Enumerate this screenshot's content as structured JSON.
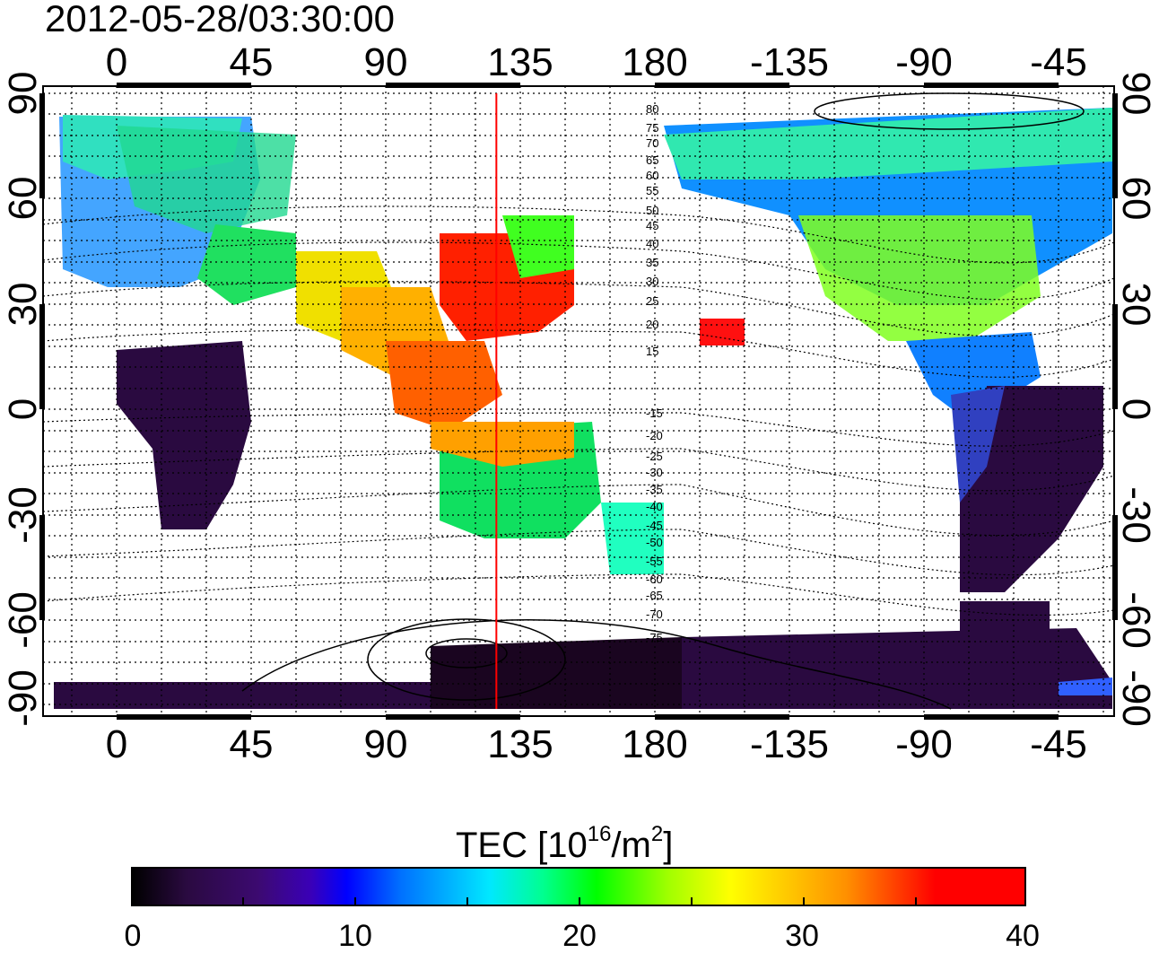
{
  "timestamp": "2012-05-28/03:30:00",
  "map": {
    "lon_ticks": [
      "0",
      "45",
      "90",
      "135",
      "180",
      "-135",
      "-90",
      "-45"
    ],
    "lat_ticks": [
      "90",
      "60",
      "30",
      "0",
      "-30",
      "-60",
      "-90"
    ],
    "meridian_marker_lon": 127,
    "contour_labels_north": [
      "80",
      "75",
      "70",
      "65",
      "60",
      "55",
      "50",
      "45",
      "40",
      "35",
      "30",
      "25",
      "20",
      "15"
    ],
    "contour_labels_south": [
      "-15",
      "-20",
      "-25",
      "-30",
      "-35",
      "-40",
      "-45",
      "-50",
      "-55",
      "-60",
      "-65",
      "-70",
      "-75"
    ],
    "colors": {
      "marker_line": "#ff0000",
      "frame": "#000000"
    }
  },
  "colorbar": {
    "label_prefix": "TEC  [10",
    "label_exp": "16",
    "label_mid": "/m",
    "label_exp2": "2",
    "label_suffix": "]",
    "ticks": [
      "0",
      "10",
      "20",
      "30",
      "40"
    ],
    "min": 0,
    "max": 40
  }
}
